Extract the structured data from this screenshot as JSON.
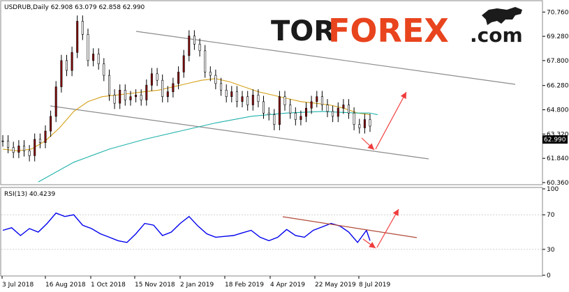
{
  "header": {
    "symbol_line": "USDRUB,Daily  62.908 63.079 62.858 62.990",
    "rsi_line": "RSI(13) 40.4239"
  },
  "brand": {
    "part1": "TOR",
    "part2": "FOREX",
    "part3": ".com"
  },
  "colors": {
    "bull": "#8a0a0a",
    "ma_short": "#d4a017",
    "ma_long": "#1fb2aa",
    "rsi": "#0000ee",
    "channel": "#8c8c8c",
    "arrow": "#f03c3c",
    "rsi_trend": "#b24a3a",
    "current_price_box": "#000000"
  },
  "chart_data": [
    {
      "type": "candlestick",
      "symbol": "USDRUB",
      "timeframe": "Daily",
      "ohlc_last": {
        "open": 62.908,
        "high": 63.079,
        "low": 62.858,
        "close": 62.99
      },
      "ylim": [
        60.36,
        71.24
      ],
      "yticks": [
        "70.760",
        "69.280",
        "67.800",
        "66.280",
        "64.800",
        "63.320",
        "61.840",
        "60.360"
      ],
      "current_price": "62.990",
      "xticks": [
        "3 Jul 2018",
        "16 Aug 2018",
        "1 Oct 2018",
        "15 Nov 2018",
        "2 Jan 2019",
        "18 Feb 2019",
        "4 Apr 2019",
        "22 May 2019",
        "8 Jul 2019"
      ],
      "series": [
        {
          "type": "candles",
          "points": [
            [
              0,
              62.9
            ],
            [
              3,
              62.5
            ],
            [
              6,
              62.2
            ],
            [
              9,
              62.6
            ],
            [
              12,
              62.3
            ],
            [
              15,
              62.0
            ],
            [
              18,
              63.0
            ],
            [
              21,
              62.8
            ],
            [
              24,
              63.5
            ],
            [
              27,
              64.4
            ],
            [
              30,
              66.2
            ],
            [
              33,
              67.8
            ],
            [
              36,
              67.2
            ],
            [
              39,
              68.3
            ],
            [
              42,
              70.2
            ],
            [
              45,
              69.4
            ],
            [
              48,
              67.8
            ],
            [
              51,
              68.2
            ],
            [
              54,
              67.6
            ],
            [
              57,
              66.9
            ],
            [
              60,
              65.7
            ],
            [
              63,
              65.2
            ],
            [
              66,
              66.0
            ],
            [
              69,
              65.4
            ],
            [
              72,
              65.6
            ],
            [
              75,
              65.7
            ],
            [
              78,
              65.4
            ],
            [
              81,
              66.3
            ],
            [
              84,
              67.0
            ],
            [
              87,
              66.6
            ],
            [
              90,
              65.6
            ],
            [
              93,
              65.9
            ],
            [
              96,
              66.4
            ],
            [
              99,
              67.1
            ],
            [
              102,
              68.1
            ],
            [
              105,
              69.3
            ],
            [
              108,
              68.8
            ],
            [
              111,
              68.4
            ],
            [
              114,
              67.1
            ],
            [
              117,
              66.9
            ],
            [
              120,
              66.4
            ],
            [
              123,
              66.0
            ],
            [
              126,
              65.6
            ],
            [
              129,
              65.9
            ],
            [
              132,
              65.3
            ],
            [
              135,
              65.6
            ],
            [
              138,
              65.1
            ],
            [
              141,
              65.7
            ],
            [
              144,
              65.3
            ],
            [
              147,
              64.6
            ],
            [
              150,
              64.5
            ],
            [
              153,
              63.9
            ],
            [
              156,
              65.6
            ],
            [
              159,
              65.1
            ],
            [
              162,
              64.6
            ],
            [
              165,
              64.2
            ],
            [
              168,
              64.4
            ],
            [
              171,
              64.9
            ],
            [
              174,
              65.3
            ],
            [
              177,
              65.6
            ],
            [
              180,
              65.1
            ],
            [
              183,
              64.7
            ],
            [
              186,
              64.4
            ],
            [
              189,
              64.9
            ],
            [
              192,
              65.1
            ],
            [
              195,
              64.6
            ],
            [
              198,
              63.9
            ],
            [
              201,
              63.7
            ],
            [
              204,
              64.2
            ],
            [
              207,
              63.8
            ]
          ]
        },
        {
          "type": "line",
          "name": "",
          "x": [
            0,
            8,
            16,
            24,
            32,
            40,
            48,
            56,
            64,
            72,
            80,
            88,
            96,
            104,
            112,
            120,
            128,
            136,
            144,
            152,
            160,
            168,
            176,
            184,
            192,
            200,
            207
          ],
          "values": [
            62.4,
            62.3,
            62.4,
            62.9,
            63.7,
            64.7,
            65.3,
            65.6,
            65.7,
            65.8,
            65.9,
            66.0,
            66.2,
            66.4,
            66.6,
            66.7,
            66.5,
            66.2,
            65.9,
            65.7,
            65.5,
            65.3,
            65.2,
            65.1,
            64.9,
            64.6,
            64.5
          ]
        },
        {
          "type": "line",
          "name": "",
          "x": [
            20,
            40,
            60,
            80,
            100,
            120,
            140,
            160,
            180,
            200,
            207
          ],
          "values": [
            60.4,
            61.6,
            62.4,
            63.0,
            63.5,
            64.0,
            64.4,
            64.6,
            64.7,
            64.6,
            64.6
          ]
        }
      ]
    },
    {
      "type": "line",
      "title": "RSI(13) 40.4239",
      "ylim": [
        0,
        100
      ],
      "yticks": [
        "100",
        "70",
        "30",
        "0"
      ],
      "xticks": [
        "3 Jul 2018",
        "16 Aug 2018",
        "1 Oct 2018",
        "15 Nov 2018",
        "2 Jan 2019",
        "18 Feb 2019",
        "4 Apr 2019",
        "22 May 2019",
        "8 Jul 2019"
      ],
      "series": [
        {
          "name": "",
          "x": [
            0,
            5,
            10,
            15,
            20,
            25,
            30,
            35,
            40,
            45,
            50,
            55,
            60,
            65,
            70,
            75,
            80,
            85,
            90,
            95,
            100,
            105,
            110,
            115,
            120,
            125,
            130,
            135,
            140,
            145,
            150,
            155,
            160,
            165,
            170,
            175,
            180,
            185,
            190,
            195,
            200,
            205,
            207
          ],
          "values": [
            52,
            55,
            46,
            54,
            50,
            60,
            72,
            68,
            70,
            58,
            54,
            48,
            44,
            40,
            38,
            48,
            60,
            58,
            46,
            50,
            60,
            68,
            57,
            48,
            44,
            45,
            46,
            49,
            52,
            44,
            40,
            44,
            53,
            46,
            44,
            52,
            56,
            60,
            57,
            50,
            38,
            52,
            40
          ]
        }
      ]
    }
  ]
}
